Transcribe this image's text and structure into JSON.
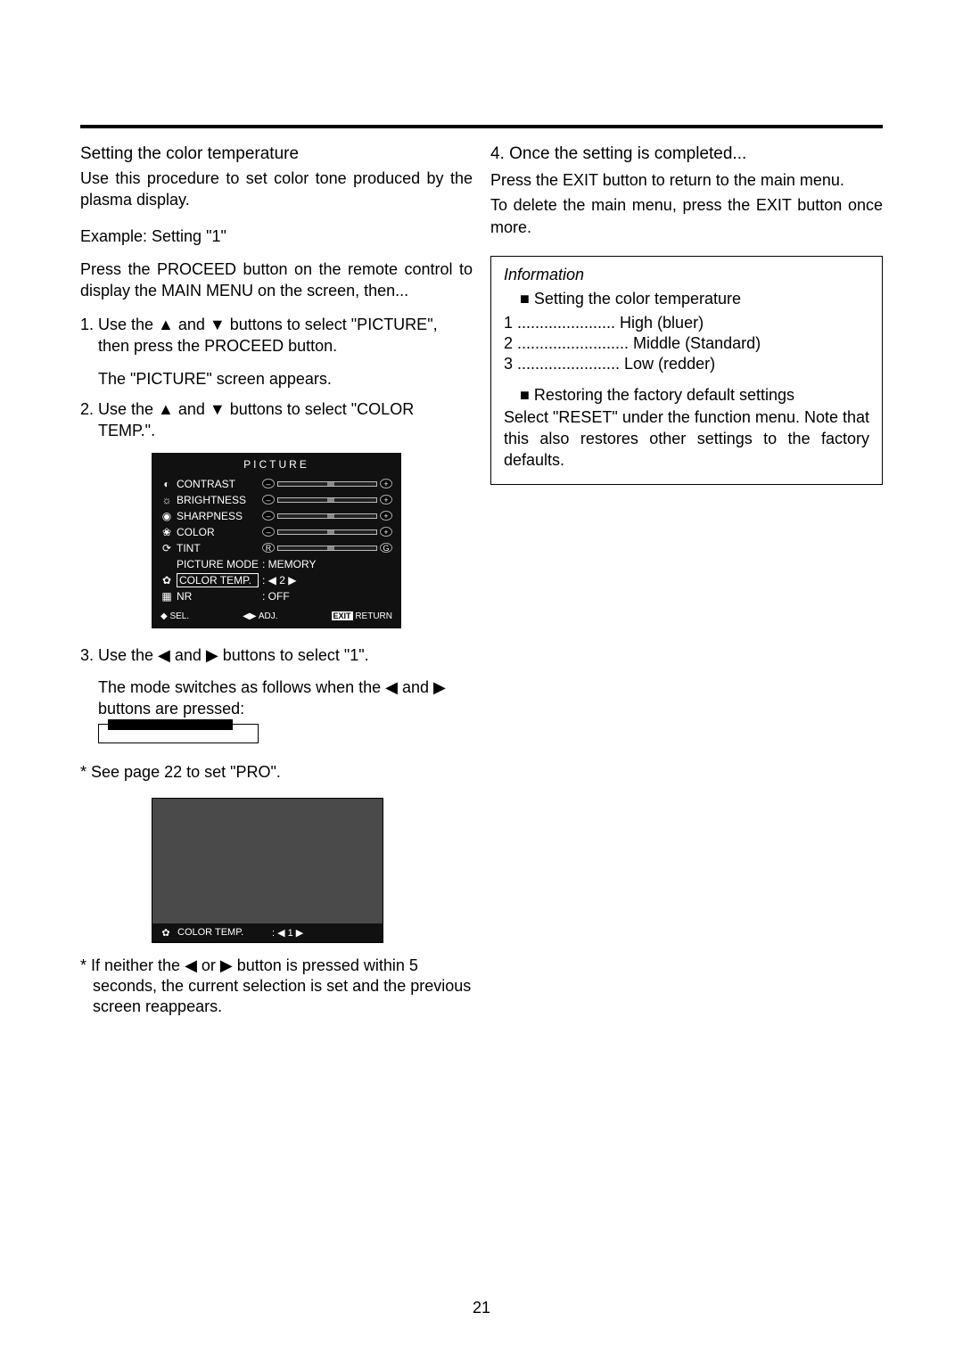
{
  "left": {
    "heading": "Setting the color temperature",
    "intro": "Use this procedure to set color tone produced by the plasma display.",
    "example_label": "Example: Setting \"1\"",
    "proceed_intro": "Press the PROCEED button on the remote control to display the MAIN MENU on the screen, then...",
    "step1_a": "1. Use the ▲ and ▼ buttons to select \"PICTURE\", then press the PROCEED button.",
    "step1_b": "The \"PICTURE\" screen appears.",
    "step2": "2. Use the ▲ and ▼ buttons to select \"COLOR TEMP.\".",
    "step3": "3. Use the ◀ and ▶ buttons to select \"1\".",
    "step3_sub": "The mode switches as follows when the ◀ and ▶ buttons are pressed:",
    "see_page": "* See page 22 to set \"PRO\".",
    "footnote": "* If neither the ◀ or ▶ button is pressed within 5 seconds, the current selection is set and the previous screen reappears."
  },
  "picture_menu": {
    "title": "PICTURE",
    "rows": [
      {
        "icon": "◐",
        "label": "CONTRAST",
        "type": "slider",
        "pos": 50,
        "l": "–",
        "r": "+"
      },
      {
        "icon": "☼",
        "label": "BRIGHTNESS",
        "type": "slider",
        "pos": 50,
        "l": "–",
        "r": "+"
      },
      {
        "icon": "◉",
        "label": "SHARPNESS",
        "type": "slider",
        "pos": 50,
        "l": "–",
        "r": "+"
      },
      {
        "icon": "❀",
        "label": "COLOR",
        "type": "slider",
        "pos": 50,
        "l": "–",
        "r": "+"
      },
      {
        "icon": "⟳",
        "label": "TINT",
        "type": "slider",
        "pos": 50,
        "l": "R",
        "r": "G"
      },
      {
        "icon": "",
        "label": "PICTURE MODE",
        "type": "value",
        "value": ":  MEMORY"
      },
      {
        "icon": "✿",
        "label": "COLOR TEMP.",
        "type": "value",
        "value": ": ◀ 2 ▶",
        "highlight": true
      },
      {
        "icon": "▦",
        "label": "NR",
        "type": "value",
        "value": ":  OFF"
      }
    ],
    "footer_sel": "SEL.",
    "footer_adj": "ADJ.",
    "footer_exit": "EXIT",
    "footer_return": "RETURN"
  },
  "preview": {
    "icon": "✿",
    "label": "COLOR TEMP.",
    "value": ": ◀  1  ▶"
  },
  "right": {
    "step4_title": "4. Once the setting is completed...",
    "step4_a": "Press the EXIT button to return to the main menu.",
    "step4_b": "To delete the main menu, press the EXIT button once more.",
    "info_title": "Information",
    "info_sub": "■ Setting the color temperature",
    "line1": "1 ...................... High (bluer)",
    "line2": "2 ......................... Middle (Standard)",
    "line3": "3 ....................... Low (redder)",
    "restore_sub": "■ Restoring the factory default settings",
    "restore_text": "Select \"RESET\" under the function menu. Note that this also restores other settings to the factory defaults."
  },
  "page_number": "21"
}
